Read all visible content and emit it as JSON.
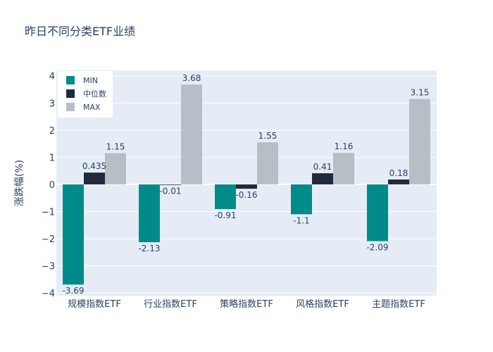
{
  "chart_data": {
    "type": "bar",
    "title": "昨日不同分类ETF业绩",
    "xlabel": "",
    "ylabel": "涨跌幅(%)",
    "ylim": [
      -4.1,
      4.2
    ],
    "yticks": [
      4,
      3,
      2,
      1,
      0,
      -1,
      -2,
      -3,
      -4
    ],
    "ytick_labels": [
      "4",
      "3",
      "2",
      "1",
      "0",
      "−1",
      "−2",
      "−3",
      "−4"
    ],
    "categories": [
      "规模指数ETF",
      "行业指数ETF",
      "策略指数ETF",
      "风格指数ETF",
      "主题指数ETF"
    ],
    "series": [
      {
        "name": "MIN",
        "color": "#008b8b",
        "values": [
          -3.69,
          -2.13,
          -0.91,
          -1.1,
          -2.09
        ],
        "labels": [
          "-3.69",
          "-2.13",
          "-0.91",
          "-1.1",
          "-2.09"
        ]
      },
      {
        "name": "中位数",
        "color": "#1f2a3c",
        "values": [
          0.435,
          -0.01,
          -0.16,
          0.41,
          0.18
        ],
        "labels": [
          "0.435",
          "-0.01",
          "-0.16",
          "0.41",
          "0.18"
        ]
      },
      {
        "name": "MAX",
        "color": "#b8bec6",
        "values": [
          1.15,
          3.68,
          1.55,
          1.16,
          3.15
        ],
        "labels": [
          "1.15",
          "3.68",
          "1.55",
          "1.16",
          "3.15"
        ]
      }
    ],
    "grid": true,
    "legend": "top-left"
  }
}
